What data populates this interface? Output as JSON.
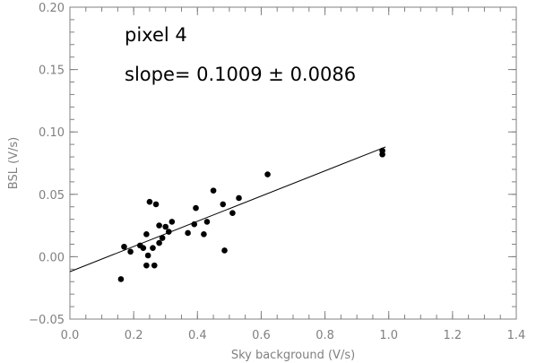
{
  "chart_data": {
    "type": "scatter",
    "xlabel": "Sky background (V/s)",
    "ylabel": "BSL (V/s)",
    "xlim": [
      0.0,
      1.4
    ],
    "ylim": [
      -0.05,
      0.2
    ],
    "x_ticks": [
      0.0,
      0.2,
      0.4,
      0.6,
      0.8,
      1.0,
      1.2,
      1.4
    ],
    "x_tick_labels": [
      "0.0",
      "0.2",
      "0.4",
      "0.6",
      "0.8",
      "1.0",
      "1.2",
      "1.4"
    ],
    "y_ticks": [
      -0.05,
      0.0,
      0.05,
      0.1,
      0.15,
      0.2
    ],
    "y_tick_labels": [
      "−0.05",
      "0.00",
      "0.05",
      "0.10",
      "0.15",
      "0.20"
    ],
    "grid": false,
    "annotations": [
      "pixel 4",
      "slope=  0.1009 ± 0.0086"
    ],
    "points": [
      {
        "x": 0.16,
        "y": -0.018
      },
      {
        "x": 0.17,
        "y": 0.008
      },
      {
        "x": 0.19,
        "y": 0.004
      },
      {
        "x": 0.22,
        "y": 0.009
      },
      {
        "x": 0.23,
        "y": 0.007
      },
      {
        "x": 0.24,
        "y": 0.018
      },
      {
        "x": 0.24,
        "y": -0.007
      },
      {
        "x": 0.245,
        "y": 0.001
      },
      {
        "x": 0.25,
        "y": 0.044
      },
      {
        "x": 0.26,
        "y": 0.007
      },
      {
        "x": 0.265,
        "y": -0.007
      },
      {
        "x": 0.27,
        "y": 0.042
      },
      {
        "x": 0.28,
        "y": 0.025
      },
      {
        "x": 0.28,
        "y": 0.011
      },
      {
        "x": 0.29,
        "y": 0.015
      },
      {
        "x": 0.3,
        "y": 0.024
      },
      {
        "x": 0.31,
        "y": 0.02
      },
      {
        "x": 0.32,
        "y": 0.028
      },
      {
        "x": 0.37,
        "y": 0.019
      },
      {
        "x": 0.39,
        "y": 0.026
      },
      {
        "x": 0.395,
        "y": 0.039
      },
      {
        "x": 0.42,
        "y": 0.018
      },
      {
        "x": 0.43,
        "y": 0.028
      },
      {
        "x": 0.45,
        "y": 0.053
      },
      {
        "x": 0.48,
        "y": 0.042
      },
      {
        "x": 0.485,
        "y": 0.005
      },
      {
        "x": 0.51,
        "y": 0.035
      },
      {
        "x": 0.53,
        "y": 0.047
      },
      {
        "x": 0.62,
        "y": 0.066
      },
      {
        "x": 0.98,
        "y": 0.082
      },
      {
        "x": 0.98,
        "y": 0.085
      }
    ],
    "fit_line": {
      "x": [
        0.0,
        0.99
      ],
      "y": [
        -0.012,
        0.088
      ]
    },
    "colors": {
      "axis": "#808080",
      "data": "#000000",
      "annotation": "#000000"
    }
  }
}
